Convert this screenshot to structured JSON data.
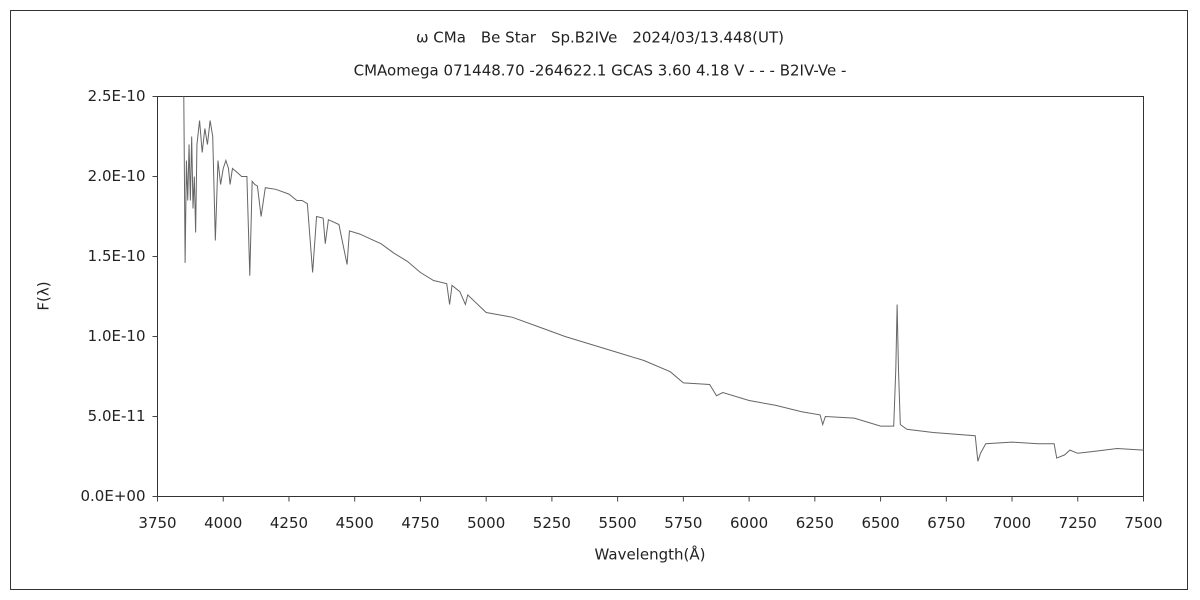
{
  "chart_data": {
    "type": "line",
    "title": "ω CMa　Be Star　Sp.B2IVe　2024/03/13.448(UT)",
    "subtitle": "CMAomega 071448.70 -264622.1 GCAS 3.60 4.18 V - - - B2IV-Ve -",
    "x_label": "Wavelength(Å)",
    "y_label": "F(λ)",
    "color": "#666666",
    "xlim": [
      3750,
      7500
    ],
    "xticks": [
      3750,
      4000,
      4250,
      4500,
      4750,
      5000,
      5250,
      5500,
      5750,
      6000,
      6250,
      6500,
      6750,
      7000,
      7250,
      7500
    ],
    "ylim": [
      0,
      2.5e-10
    ],
    "yticks": [
      {
        "value": 0,
        "label": "0.0E+00"
      },
      {
        "value": 5e-11,
        "label": "5.0E-11"
      },
      {
        "value": 1e-10,
        "label": "1.0E-10"
      },
      {
        "value": 1.5e-10,
        "label": "1.5E-10"
      },
      {
        "value": 2e-10,
        "label": "2.0E-10"
      },
      {
        "value": 2.5e-10,
        "label": "2.5E-10"
      }
    ],
    "x": [
      3850,
      3855,
      3860,
      3865,
      3870,
      3875,
      3880,
      3885,
      3890,
      3895,
      3900,
      3910,
      3920,
      3930,
      3940,
      3950,
      3960,
      3970,
      3980,
      3990,
      4000,
      4010,
      4020,
      4026,
      4035,
      4050,
      4070,
      4090,
      4101,
      4110,
      4120,
      4130,
      4144,
      4160,
      4200,
      4250,
      4280,
      4300,
      4320,
      4340,
      4355,
      4380,
      4388,
      4400,
      4440,
      4471,
      4480,
      4520,
      4560,
      4600,
      4650,
      4700,
      4750,
      4800,
      4850,
      4861,
      4870,
      4900,
      4921,
      4930,
      5000,
      5100,
      5200,
      5300,
      5400,
      5500,
      5600,
      5700,
      5750,
      5850,
      5876,
      5900,
      6000,
      6100,
      6200,
      6270,
      6280,
      6290,
      6400,
      6500,
      6550,
      6558,
      6563,
      6568,
      6575,
      6600,
      6700,
      6860,
      6870,
      6880,
      6900,
      7000,
      7100,
      7160,
      7170,
      7200,
      7220,
      7250,
      7300,
      7400,
      7500
    ],
    "values": [
      2.5e-10,
      1.46e-10,
      2.1e-10,
      1.85e-10,
      2.2e-10,
      1.85e-10,
      2.25e-10,
      1.8e-10,
      2e-10,
      1.65e-10,
      2.2e-10,
      2.35e-10,
      2.15e-10,
      2.3e-10,
      2.2e-10,
      2.35e-10,
      2.25e-10,
      1.6e-10,
      2.1e-10,
      1.95e-10,
      2.05e-10,
      2.1e-10,
      2.05e-10,
      1.95e-10,
      2.05e-10,
      2.03e-10,
      2e-10,
      2e-10,
      1.38e-10,
      1.97e-10,
      1.95e-10,
      1.94e-10,
      1.75e-10,
      1.93e-10,
      1.92e-10,
      1.89e-10,
      1.85e-10,
      1.85e-10,
      1.83e-10,
      1.4e-10,
      1.75e-10,
      1.74e-10,
      1.58e-10,
      1.73e-10,
      1.7e-10,
      1.45e-10,
      1.66e-10,
      1.64e-10,
      1.61e-10,
      1.58e-10,
      1.52e-10,
      1.47e-10,
      1.4e-10,
      1.35e-10,
      1.33e-10,
      1.2e-10,
      1.32e-10,
      1.28e-10,
      1.2e-10,
      1.26e-10,
      1.15e-10,
      1.12e-10,
      1.06e-10,
      1e-10,
      9.5e-11,
      9e-11,
      8.5e-11,
      7.8e-11,
      7.1e-11,
      7e-11,
      6.3e-11,
      6.5e-11,
      6e-11,
      5.7e-11,
      5.3e-11,
      5.1e-11,
      4.5e-11,
      5e-11,
      4.9e-11,
      4.4e-11,
      4.4e-11,
      8e-11,
      1.2e-10,
      8e-11,
      4.5e-11,
      4.2e-11,
      4e-11,
      3.8e-11,
      2.2e-11,
      2.7e-11,
      3.3e-11,
      3.4e-11,
      3.3e-11,
      3.3e-11,
      2.4e-11,
      2.6e-11,
      2.9e-11,
      2.7e-11,
      2.8e-11,
      3e-11,
      2.9e-11
    ]
  }
}
